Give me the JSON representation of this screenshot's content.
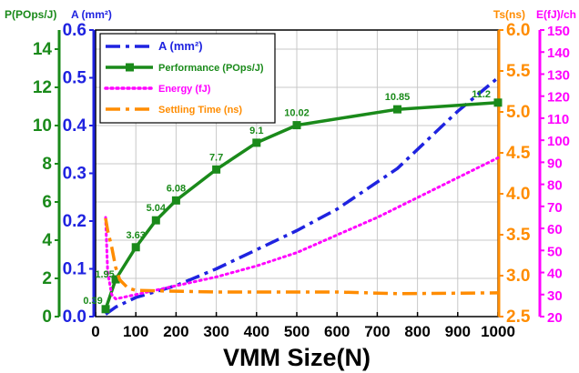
{
  "chart_data": {
    "type": "line",
    "title": "",
    "xlabel": "VMM Size(N)",
    "xlim": [
      0,
      1000
    ],
    "xticks": [
      "0",
      "100",
      "200",
      "300",
      "400",
      "500",
      "600",
      "700",
      "800",
      "900",
      "1000"
    ],
    "grid": true,
    "legend_position": "top-left",
    "axes": {
      "perf": {
        "label": "P(POps/J)",
        "side": "left-outer",
        "color": "#1a8a1a",
        "lim": [
          0,
          15
        ],
        "ticks": [
          "0",
          "2",
          "4",
          "6",
          "8",
          "10",
          "12",
          "14"
        ]
      },
      "area": {
        "label": "A (mm²)",
        "side": "left-inner",
        "color": "#1f23e0",
        "lim": [
          0,
          0.6
        ],
        "ticks": [
          "0.0",
          "0.1",
          "0.2",
          "0.3",
          "0.4",
          "0.5",
          "0.6"
        ]
      },
      "ts": {
        "label": "Ts(ns)",
        "side": "right-inner",
        "color": "#ff8c00",
        "lim": [
          2.5,
          6.0
        ],
        "ticks": [
          "2.5",
          "3.0",
          "3.5",
          "4.0",
          "4.5",
          "5.0",
          "5.5",
          "6.0"
        ]
      },
      "energy": {
        "label": "E(fJ)/ch",
        "side": "right-outer",
        "color": "#ff00ff",
        "lim": [
          20,
          150
        ],
        "ticks": [
          "20",
          "30",
          "40",
          "50",
          "60",
          "70",
          "80",
          "90",
          "100",
          "110",
          "120",
          "130",
          "140",
          "150"
        ]
      }
    },
    "series": [
      {
        "name": "A (mm²)",
        "axis": "area",
        "color": "#1f23e0",
        "style": "dashdot",
        "x": [
          25,
          50,
          100,
          200,
          300,
          400,
          500,
          600,
          750,
          900,
          1000
        ],
        "y": [
          0.005,
          0.02,
          0.04,
          0.065,
          0.1,
          0.14,
          0.18,
          0.225,
          0.31,
          0.43,
          0.5
        ]
      },
      {
        "name": "Performance (POps/J)",
        "axis": "perf",
        "color": "#1a8a1a",
        "style": "solid-square",
        "x": [
          25,
          50,
          100,
          150,
          200,
          300,
          400,
          500,
          750,
          1000
        ],
        "y": [
          0.39,
          1.95,
          3.63,
          5.04,
          6.08,
          7.7,
          9.1,
          10.02,
          10.85,
          11.2
        ]
      },
      {
        "name": "Energy (fJ)",
        "axis": "energy",
        "color": "#ff00ff",
        "style": "dotted",
        "x": [
          25,
          30,
          40,
          50,
          100,
          200,
          300,
          400,
          500,
          600,
          700,
          800,
          900,
          1000
        ],
        "y": [
          65,
          40,
          30,
          28,
          30,
          34,
          38,
          43,
          49,
          57,
          65,
          74,
          83,
          92
        ]
      },
      {
        "name": "Settling Time (ns)",
        "axis": "ts",
        "color": "#ff8c00",
        "style": "dashdot",
        "x": [
          25,
          30,
          40,
          50,
          60,
          80,
          100,
          200,
          300,
          400,
          500,
          600,
          750,
          1000
        ],
        "y": [
          3.7,
          3.55,
          3.35,
          3.1,
          2.95,
          2.85,
          2.82,
          2.81,
          2.8,
          2.8,
          2.8,
          2.8,
          2.78,
          2.79
        ]
      }
    ],
    "data_labels": [
      {
        "x": 25,
        "value": "0.39"
      },
      {
        "x": 50,
        "value": "1.95"
      },
      {
        "x": 100,
        "value": "3.63"
      },
      {
        "x": 150,
        "value": "5.04"
      },
      {
        "x": 200,
        "value": "6.08"
      },
      {
        "x": 300,
        "value": "7.7"
      },
      {
        "x": 400,
        "value": "9.1"
      },
      {
        "x": 500,
        "value": "10.02"
      },
      {
        "x": 750,
        "value": "10.85"
      },
      {
        "x": 1000,
        "value": "11.2"
      }
    ]
  }
}
